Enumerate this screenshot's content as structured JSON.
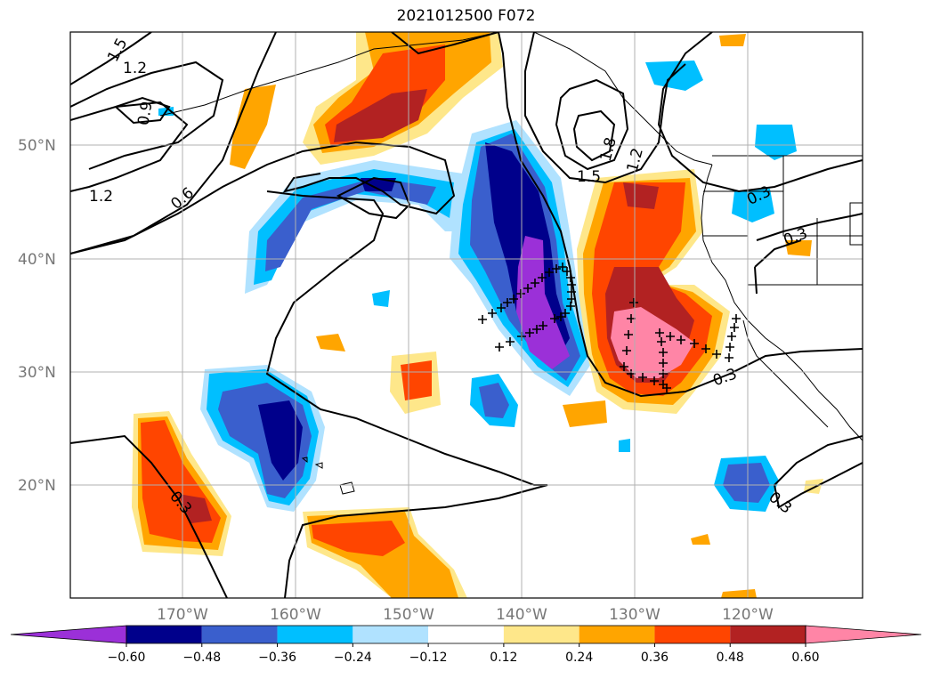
{
  "title": "2021012500 F072",
  "lat_labels": [
    "50°N",
    "40°N",
    "30°N",
    "20°N"
  ],
  "lon_labels": [
    "170°W",
    "160°W",
    "150°W",
    "140°W",
    "130°W",
    "120°W"
  ],
  "colorbar": {
    "colors": [
      "#9b30d8",
      "#00008b",
      "#3a5fcd",
      "#00bfff",
      "#b0e2ff",
      "#ffffff",
      "#fee78a",
      "#ffa500",
      "#ff4500",
      "#b22222",
      "#ff85a6"
    ],
    "labels": [
      "−0.60",
      "−0.48",
      "−0.36",
      "−0.24",
      "−0.12",
      "0.12",
      "0.24",
      "0.36",
      "0.48",
      "0.60"
    ]
  },
  "contour_labels": [
    "1.5",
    "1.2",
    "0.9",
    "1.2",
    "0.6",
    "1.8",
    "1.5",
    "1.2",
    "0.3",
    "0.3",
    "0.3",
    "0.3",
    "0.3"
  ]
}
